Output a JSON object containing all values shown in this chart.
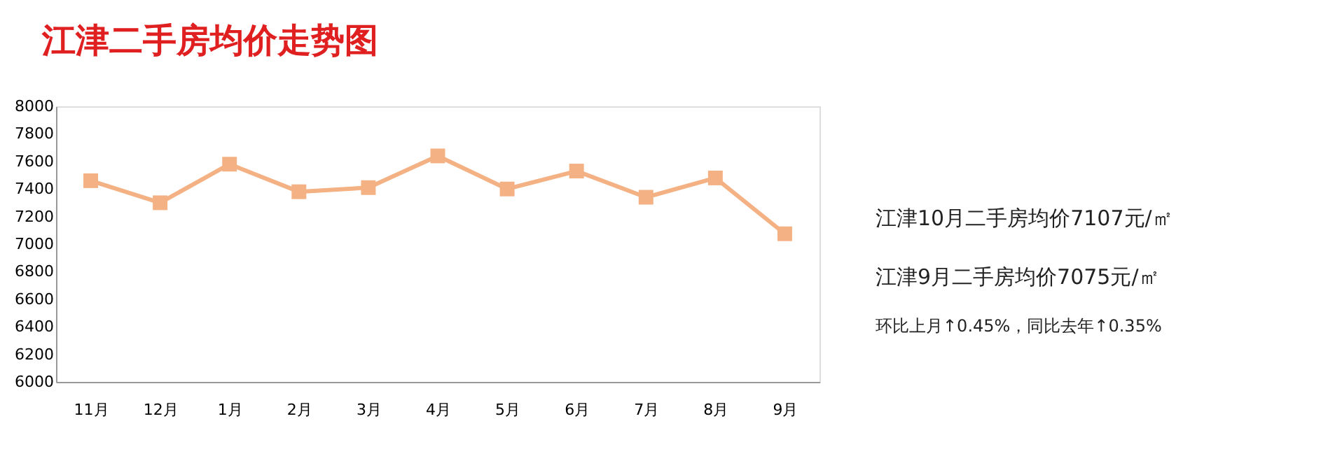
{
  "chart_data": {
    "type": "line",
    "title": "江津二手房均价走势图",
    "categories": [
      "11月",
      "12月",
      "1月",
      "2月",
      "3月",
      "4月",
      "5月",
      "6月",
      "7月",
      "8月",
      "9月"
    ],
    "series": [
      {
        "color": "#f4b183",
        "values": [
          7460,
          7300,
          7580,
          7380,
          7410,
          7640,
          7400,
          7530,
          7340,
          7480,
          7075
        ]
      }
    ],
    "ylim": [
      6000,
      8000
    ],
    "yticks": [
      6000,
      6200,
      6400,
      6600,
      6800,
      7000,
      7200,
      7400,
      7600,
      7800,
      8000
    ],
    "grid": false,
    "legend": false,
    "marker": "square",
    "line_style": "solid",
    "annotations": [
      "江津10月二手房均价7107元/㎡",
      "江津9月二手房均价7075元/㎡",
      "环比上月↑0.45%，同比去年↑0.35%"
    ]
  }
}
